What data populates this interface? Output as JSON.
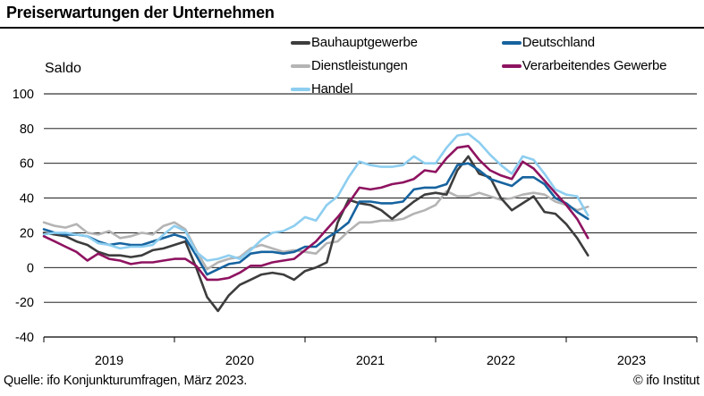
{
  "title": "Preiserwartungen der Unternehmen",
  "y_axis": {
    "unit_label": "Saldo"
  },
  "legend": {
    "items": [
      {
        "label": "Bauhauptgewerbe",
        "color": "#3d3d3d"
      },
      {
        "label": "Dienstleistungen",
        "color": "#b4b4b4"
      },
      {
        "label": "Handel",
        "color": "#8dcef0"
      },
      {
        "label": "Deutschland",
        "color": "#16639f"
      },
      {
        "label": "Verarbeitendes Gewerbe",
        "color": "#8e1360"
      }
    ]
  },
  "footer": {
    "source": "Quelle: ifo Konjunkturumfragen, März 2023.",
    "copyright": "© ifo Institut"
  },
  "chart_data": {
    "type": "line",
    "title": "Preiserwartungen der Unternehmen",
    "ylabel": "Saldo",
    "x_start_month": "2019-01",
    "x_end_month": "2023-03",
    "x_frequency": "monthly",
    "x_year_labels": [
      "2019",
      "2020",
      "2021",
      "2022",
      "2023"
    ],
    "y_ticks": [
      100,
      80,
      60,
      40,
      20,
      0,
      -20,
      -40
    ],
    "ylim": [
      -40,
      100
    ],
    "grid": true,
    "legend_position": "top",
    "series": [
      {
        "key": "dienstleistungen",
        "name": "Dienstleistungen",
        "color": "#b4b4b4",
        "values": [
          26,
          24,
          23,
          25,
          20,
          19,
          21,
          17,
          18,
          20,
          19,
          24,
          26,
          22,
          10,
          -1,
          3,
          5,
          6,
          11,
          13,
          11,
          9,
          10,
          9,
          8,
          14,
          15,
          21,
          26,
          26,
          27,
          27,
          28,
          31,
          33,
          36,
          44,
          41,
          41,
          43,
          41,
          39,
          40,
          42,
          43,
          42,
          38,
          36,
          33,
          35
        ]
      },
      {
        "key": "bauhauptgewerbe",
        "name": "Bauhauptgewerbe",
        "color": "#3d3d3d",
        "values": [
          20,
          19,
          18,
          15,
          13,
          9,
          7,
          7,
          6,
          7,
          10,
          11,
          13,
          15,
          0,
          -17,
          -25,
          -16,
          -10,
          -7,
          -4,
          -3,
          -4,
          -7,
          -2,
          0,
          3,
          26,
          39,
          37,
          36,
          33,
          28,
          33,
          38,
          42,
          43,
          42,
          56,
          64,
          54,
          52,
          40,
          33,
          37,
          41,
          32,
          31,
          25,
          17,
          7
        ]
      },
      {
        "key": "deutschland",
        "name": "Deutschland",
        "color": "#16639f",
        "values": [
          22,
          20,
          19,
          19,
          18,
          15,
          13,
          14,
          13,
          13,
          15,
          17,
          19,
          17,
          7,
          -4,
          -1,
          2,
          3,
          8,
          9,
          9,
          8,
          9,
          12,
          12,
          17,
          21,
          26,
          38,
          38,
          37,
          37,
          38,
          45,
          46,
          46,
          48,
          59,
          60,
          56,
          51,
          49,
          47,
          52,
          52,
          48,
          40,
          37,
          32,
          28
        ]
      },
      {
        "key": "handel",
        "name": "Handel",
        "color": "#8dcef0",
        "values": [
          19,
          20,
          20,
          19,
          18,
          14,
          13,
          11,
          12,
          12,
          13,
          19,
          24,
          21,
          9,
          4,
          5,
          7,
          5,
          10,
          16,
          20,
          21,
          24,
          29,
          27,
          36,
          41,
          52,
          61,
          59,
          58,
          58,
          59,
          64,
          60,
          60,
          69,
          76,
          77,
          72,
          65,
          59,
          54,
          64,
          62,
          54,
          45,
          42,
          41,
          30
        ]
      },
      {
        "key": "verarbeitendes_gewerbe",
        "name": "Verarbeitendes Gewerbe",
        "color": "#8e1360",
        "values": [
          18,
          15,
          12,
          9,
          4,
          8,
          5,
          4,
          2,
          3,
          3,
          4,
          5,
          5,
          1,
          -7,
          -7,
          -6,
          -3,
          1,
          1,
          3,
          4,
          5,
          10,
          15,
          22,
          29,
          37,
          46,
          45,
          46,
          48,
          49,
          51,
          56,
          55,
          63,
          69,
          70,
          62,
          56,
          53,
          51,
          61,
          57,
          50,
          43,
          36,
          28,
          17
        ]
      }
    ]
  }
}
